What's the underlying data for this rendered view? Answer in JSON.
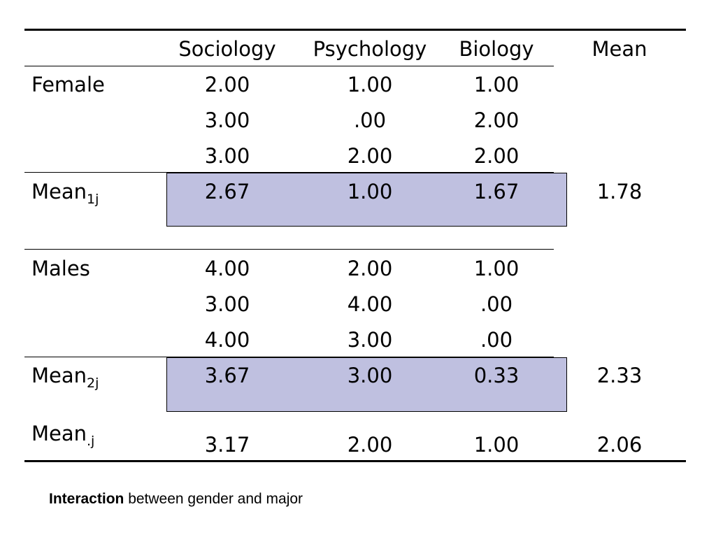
{
  "table": {
    "headers": {
      "col1": "Sociology",
      "col2": "Psychology",
      "col3": "Biology",
      "mean": "Mean"
    },
    "female": {
      "label": "Female",
      "rows": [
        [
          "2.00",
          "1.00",
          "1.00"
        ],
        [
          "3.00",
          ".00",
          "2.00"
        ],
        [
          "3.00",
          "2.00",
          "2.00"
        ]
      ],
      "mean_label": "Mean",
      "mean_sub": "1j",
      "means": [
        "2.67",
        "1.00",
        "1.67"
      ],
      "grand": "1.78"
    },
    "male": {
      "label": "Males",
      "rows": [
        [
          "4.00",
          "2.00",
          "1.00"
        ],
        [
          "3.00",
          "4.00",
          ".00"
        ],
        [
          "4.00",
          "3.00",
          ".00"
        ]
      ],
      "mean_label": "Mean",
      "mean_sub": "2j",
      "means": [
        "3.67",
        "3.00",
        "0.33"
      ],
      "grand": "2.33"
    },
    "column_means": {
      "label": "Mean",
      "sub": ".j",
      "values": [
        "3.17",
        "2.00",
        "1.00"
      ],
      "grand": "2.06"
    },
    "highlight_color": "#bfc0e0"
  },
  "caption": {
    "bold": "Interaction",
    "rest": " between gender and major"
  }
}
